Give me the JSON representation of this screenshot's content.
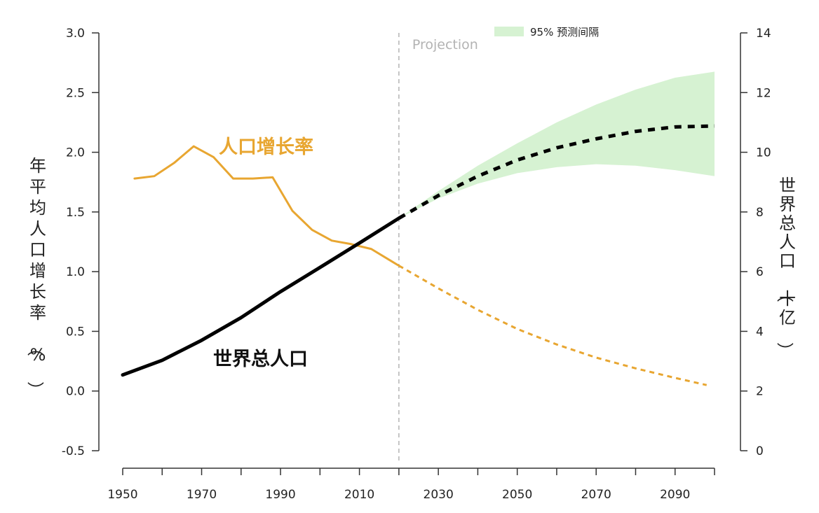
{
  "chart_data": {
    "type": "line",
    "x_ticks": [
      1950,
      1970,
      1990,
      2010,
      2030,
      2050,
      2070,
      2090
    ],
    "x_range": [
      1950,
      2100
    ],
    "projection_start": 2020,
    "projection_label": "Projection",
    "legend": {
      "band_label": "95% 预测间隔",
      "band_color": "#d6f2d2"
    },
    "left_axis": {
      "title": "年平均人口增长率（%）",
      "range": [
        -0.5,
        3.0
      ],
      "ticks": [
        "3.0",
        "2.5",
        "2.0",
        "1.5",
        "1.0",
        "0.5",
        "0.0",
        "-0.5"
      ]
    },
    "right_axis": {
      "title": "世界总人口（十亿）",
      "range": [
        0,
        14
      ],
      "ticks": [
        "14",
        "12",
        "10",
        "8",
        "6",
        "4",
        "2",
        "0"
      ]
    },
    "series": [
      {
        "name": "人口增长率",
        "axis": "left",
        "color": "#e8a631",
        "observed": [
          [
            1953,
            1.78
          ],
          [
            1958,
            1.8
          ],
          [
            1963,
            1.91
          ],
          [
            1968,
            2.05
          ],
          [
            1973,
            1.96
          ],
          [
            1978,
            1.78
          ],
          [
            1983,
            1.78
          ],
          [
            1988,
            1.79
          ],
          [
            1993,
            1.51
          ],
          [
            1998,
            1.35
          ],
          [
            2003,
            1.26
          ],
          [
            2008,
            1.23
          ],
          [
            2013,
            1.19
          ],
          [
            2018,
            1.09
          ],
          [
            2020,
            1.05
          ]
        ],
        "projected": [
          [
            2020,
            1.05
          ],
          [
            2030,
            0.86
          ],
          [
            2040,
            0.68
          ],
          [
            2050,
            0.52
          ],
          [
            2060,
            0.39
          ],
          [
            2070,
            0.28
          ],
          [
            2080,
            0.19
          ],
          [
            2090,
            0.11
          ],
          [
            2098,
            0.05
          ]
        ]
      },
      {
        "name": "世界总人口",
        "axis": "right",
        "color": "#000000",
        "observed": [
          [
            1950,
            2.54
          ],
          [
            1960,
            3.03
          ],
          [
            1970,
            3.7
          ],
          [
            1980,
            4.46
          ],
          [
            1990,
            5.33
          ],
          [
            2000,
            6.14
          ],
          [
            2010,
            6.96
          ],
          [
            2020,
            7.79
          ]
        ],
        "projected": [
          [
            2020,
            7.79
          ],
          [
            2030,
            8.55
          ],
          [
            2040,
            9.2
          ],
          [
            2050,
            9.74
          ],
          [
            2060,
            10.15
          ],
          [
            2070,
            10.45
          ],
          [
            2080,
            10.7
          ],
          [
            2090,
            10.85
          ],
          [
            2100,
            10.88
          ]
        ],
        "band": [
          [
            2020,
            7.79,
            7.79
          ],
          [
            2030,
            8.45,
            8.7
          ],
          [
            2040,
            8.95,
            9.55
          ],
          [
            2050,
            9.3,
            10.3
          ],
          [
            2060,
            9.5,
            11.0
          ],
          [
            2070,
            9.6,
            11.6
          ],
          [
            2080,
            9.55,
            12.1
          ],
          [
            2090,
            9.4,
            12.5
          ],
          [
            2100,
            9.2,
            12.7
          ]
        ]
      }
    ]
  }
}
